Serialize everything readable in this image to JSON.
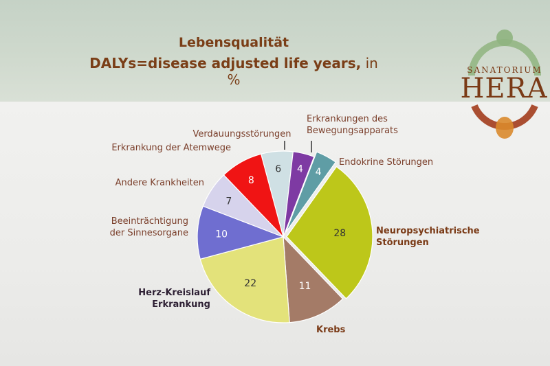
{
  "slide": {
    "title_line1": "Lebensqualität",
    "title_line2": "DALYs=disease adjusted life years,",
    "title_unit": " in %"
  },
  "logo": {
    "sub": "SANATORIUM",
    "main": "HERA",
    "colors": [
      "#8fb47f",
      "#a23c1c",
      "#d98a2c"
    ]
  },
  "chart_data": {
    "type": "pie",
    "title": "DALYs=disease adjusted life years, in %",
    "slices": [
      {
        "label": "Verdauungsstörungen",
        "value": 6,
        "color": "#cfe0e4"
      },
      {
        "label": "Erkrankungen des Bewegungsapparats",
        "value": 4,
        "color": "#7e3aa3"
      },
      {
        "label": "Endokrine Störungen",
        "value": 4,
        "color": "#5f9da5"
      },
      {
        "label": "Neuropsychiatrische Störungen",
        "value": 28,
        "color": "#bdc71a"
      },
      {
        "label": "Krebs",
        "value": 11,
        "color": "#a47b67"
      },
      {
        "label": "Herz-Kreislauf Erkrankung",
        "value": 22,
        "color": "#e3e27a"
      },
      {
        "label": "Beeinträchtigung der Sinnesorgane",
        "value": 10,
        "color": "#6f6ed0"
      },
      {
        "label": "Andere Krankheiten",
        "value": 7,
        "color": "#d6d3ec"
      },
      {
        "label": "Erkrankung der Atemwege",
        "value": 8,
        "color": "#f01414"
      }
    ]
  }
}
